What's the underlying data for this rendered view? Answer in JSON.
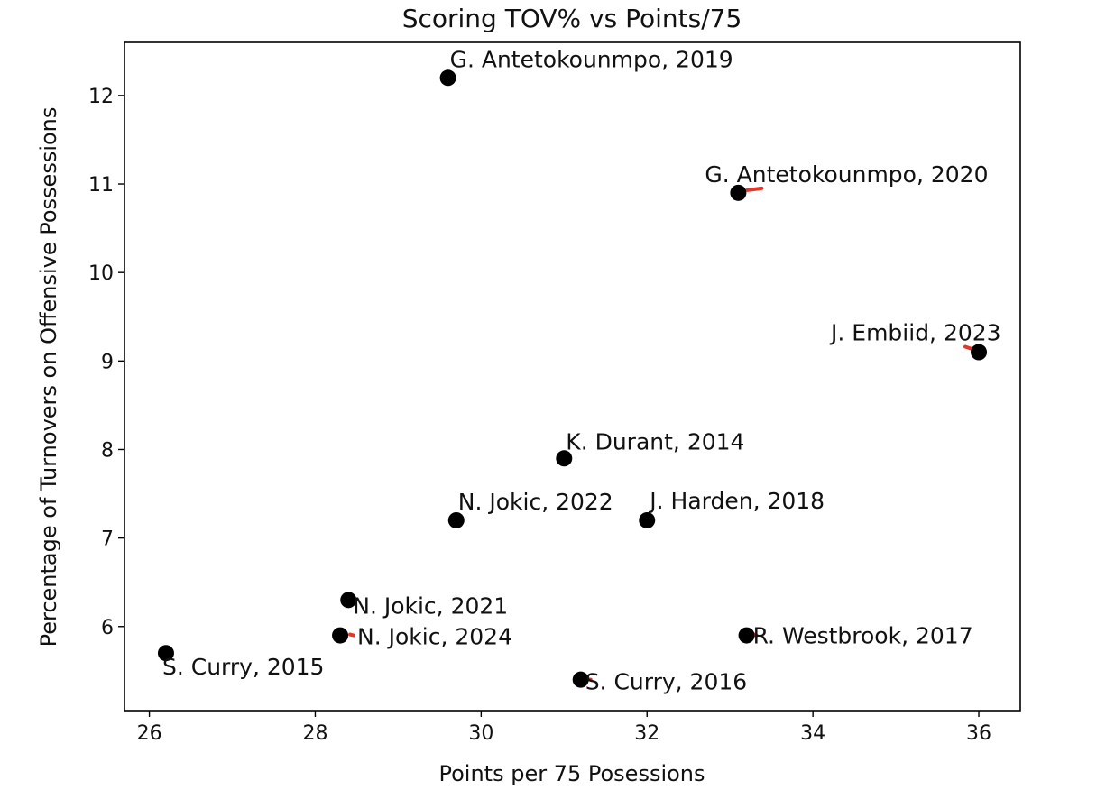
{
  "chart_data": {
    "type": "scatter",
    "title": "Scoring TOV% vs Points/75",
    "xlabel": "Points per 75 Posessions",
    "ylabel": "Percentage of Turnovers on Offensive Possessions",
    "xlim": [
      25.7,
      36.5
    ],
    "ylim": [
      5.05,
      12.6
    ],
    "xticks": [
      26,
      28,
      30,
      32,
      34,
      36
    ],
    "yticks": [
      6,
      7,
      8,
      9,
      10,
      11,
      12
    ],
    "xtick_labels": [
      "26",
      "28",
      "30",
      "32",
      "34",
      "36"
    ],
    "ytick_labels": [
      "6",
      "7",
      "8",
      "9",
      "10",
      "11",
      "12"
    ],
    "grid": false,
    "legend": "none",
    "marker_color": "#000000",
    "leader_color": "#e0382b",
    "points": [
      {
        "label": "G. Antetokounmpo, 2019",
        "x": 29.6,
        "y": 12.2
      },
      {
        "label": "G. Antetokounmpo, 2020",
        "x": 33.1,
        "y": 10.9
      },
      {
        "label": "J. Embiid, 2023",
        "x": 36.0,
        "y": 9.1
      },
      {
        "label": "K. Durant, 2014",
        "x": 31.0,
        "y": 7.9
      },
      {
        "label": "N. Jokic, 2022",
        "x": 29.7,
        "y": 7.2
      },
      {
        "label": "J. Harden, 2018",
        "x": 32.0,
        "y": 7.2
      },
      {
        "label": "N. Jokic, 2021",
        "x": 28.4,
        "y": 6.3
      },
      {
        "label": "N. Jokic, 2024",
        "x": 28.3,
        "y": 5.9
      },
      {
        "label": "R. Westbrook, 2017",
        "x": 33.2,
        "y": 5.9
      },
      {
        "label": "S. Curry, 2015",
        "x": 26.2,
        "y": 5.7
      },
      {
        "label": "S. Curry, 2016",
        "x": 31.2,
        "y": 5.4
      }
    ]
  }
}
